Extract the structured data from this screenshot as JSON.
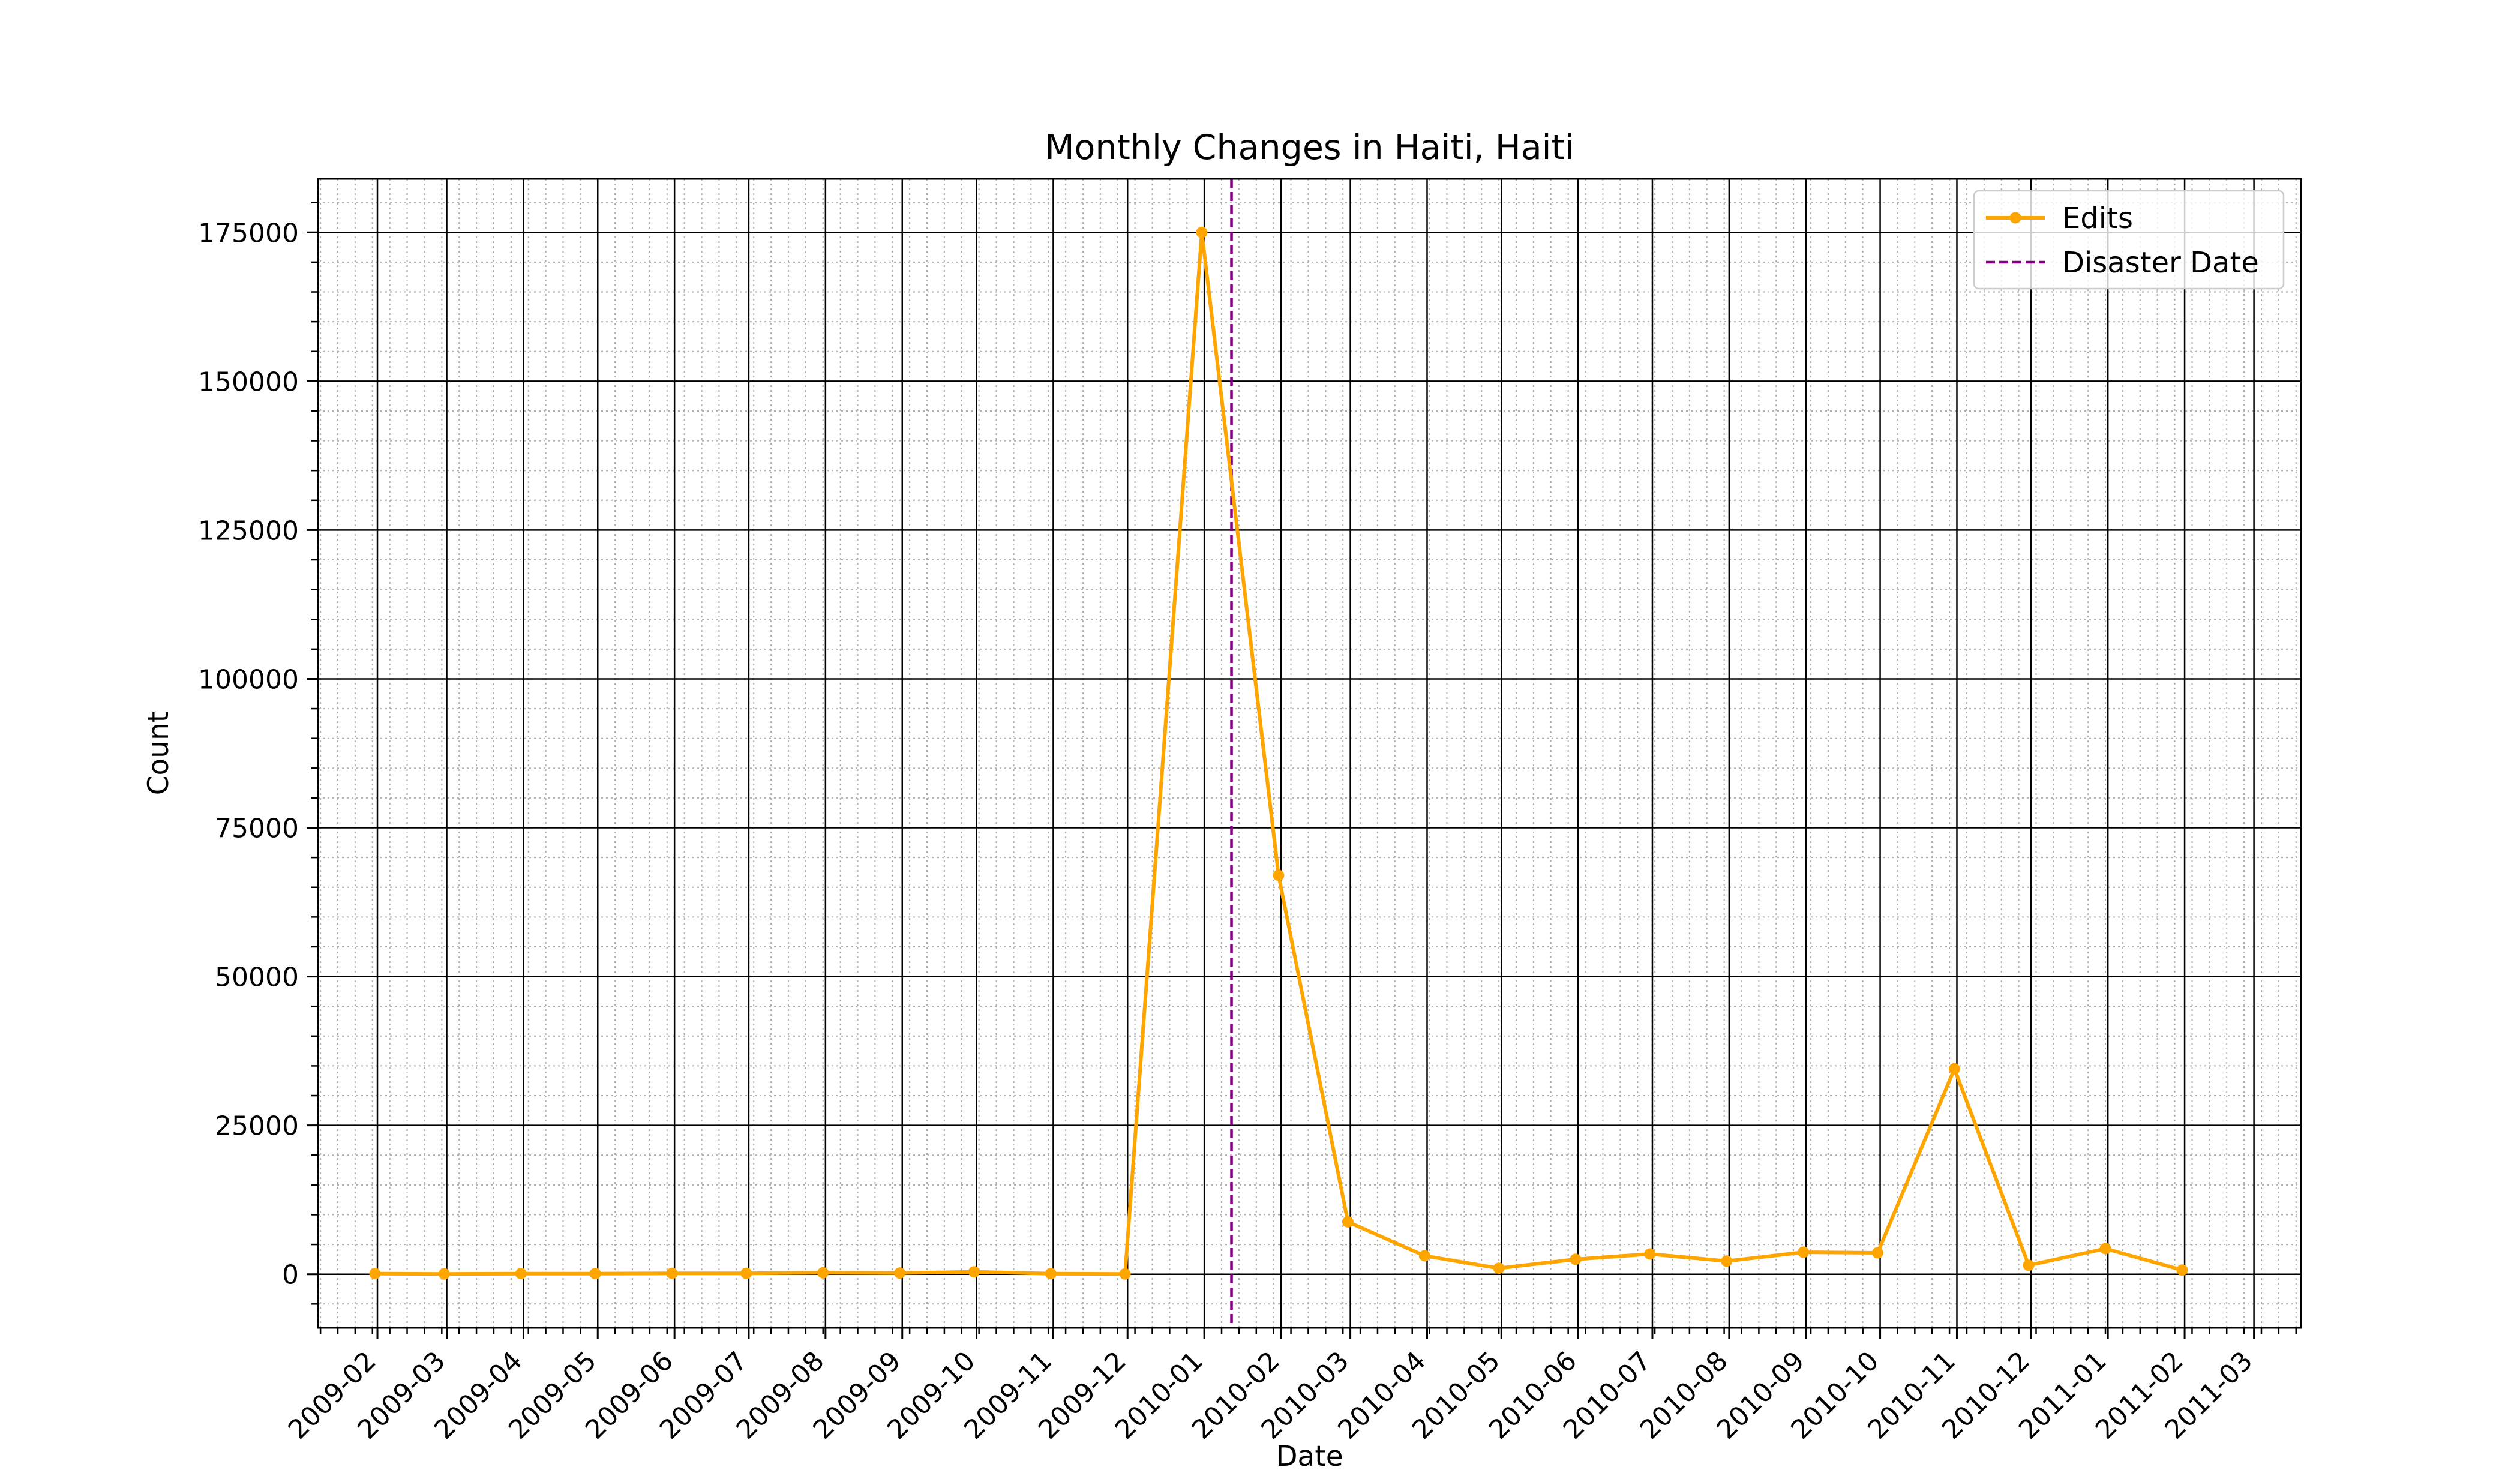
{
  "chart_data": {
    "type": "line",
    "title": "Monthly Changes in Haiti, Haiti",
    "xlabel": "Date",
    "ylabel": "Count",
    "x_ticks": [
      "2009-02",
      "2009-03",
      "2009-04",
      "2009-05",
      "2009-06",
      "2009-07",
      "2009-08",
      "2009-09",
      "2009-10",
      "2009-11",
      "2009-12",
      "2010-01",
      "2010-02",
      "2010-03",
      "2010-04",
      "2010-05",
      "2010-06",
      "2010-07",
      "2010-08",
      "2010-09",
      "2010-10",
      "2010-11",
      "2010-12",
      "2011-01",
      "2011-02",
      "2011-03"
    ],
    "y_ticks": [
      0,
      25000,
      50000,
      75000,
      100000,
      125000,
      150000,
      175000
    ],
    "xlim": [
      "2009-01-08",
      "2011-03-20"
    ],
    "ylim": [
      -9000,
      184000
    ],
    "grid": true,
    "legend_position": "top-right",
    "series": [
      {
        "name": "Edits",
        "color": "#ffa500",
        "marker": "circle",
        "x": [
          "2009-01-31",
          "2009-02-28",
          "2009-03-31",
          "2009-04-30",
          "2009-05-31",
          "2009-06-30",
          "2009-07-31",
          "2009-08-31",
          "2009-09-30",
          "2009-10-31",
          "2009-11-30",
          "2009-12-31",
          "2010-01-31",
          "2010-02-28",
          "2010-03-31",
          "2010-04-30",
          "2010-05-31",
          "2010-06-30",
          "2010-07-31",
          "2010-08-31",
          "2010-09-30",
          "2010-10-31",
          "2010-11-30",
          "2010-12-31",
          "2011-01-31"
        ],
        "values": [
          100,
          50,
          100,
          100,
          150,
          150,
          250,
          200,
          400,
          100,
          50,
          175000,
          67000,
          8800,
          3100,
          1000,
          2500,
          3400,
          2200,
          3700,
          3600,
          34500,
          1500,
          4300,
          700
        ]
      }
    ],
    "annotations": [
      {
        "name": "Disaster Date",
        "type": "vline",
        "x": "2010-01-12",
        "color": "#800080",
        "style": "dashed"
      }
    ]
  }
}
